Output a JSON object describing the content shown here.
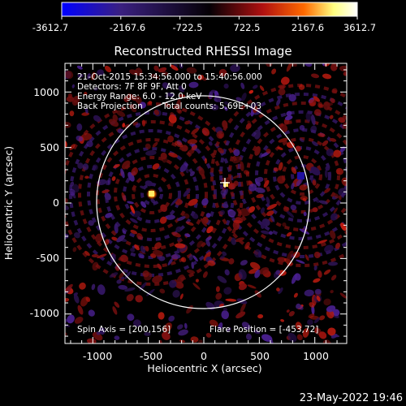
{
  "title": "Reconstructed RHESSI Image",
  "colorbar": {
    "ticks": [
      "-3612.7",
      "-2167.6",
      "-722.5",
      "722.5",
      "2167.6",
      "3612.7"
    ],
    "stops": [
      "#0000ff",
      "#3a2080",
      "#000000",
      "#b01010",
      "#ff6a00",
      "#ffff90",
      "#ffffff"
    ]
  },
  "info": {
    "line1": "21-Oct-2015 15:34:56.000 to 15:40:56.000",
    "line2": "Detectors: 7F 8F 9F, Att 0",
    "line3": "Energy Range: 6.0 - 12.0 keV",
    "line4a": "Back Projection",
    "line4b": "Total counts: 5.69E+03"
  },
  "footer": {
    "spin_axis": "Spin Axis = [200,156]",
    "flare_position": "Flare Position = [-453,72]"
  },
  "axes": {
    "xlabel": "Heliocentric X (arcsec)",
    "ylabel": "Heliocentric Y (arcsec)",
    "xticks": [
      "-1000",
      "-500",
      "0",
      "500",
      "1000"
    ],
    "yticks": [
      "1000",
      "500",
      "0",
      "-500",
      "-1000"
    ]
  },
  "timestamp": "23-May-2022 19:46",
  "colors": {
    "background": "#000000",
    "limb": "#ffffff",
    "hot": "#ffee66",
    "cold": "#2010a0"
  }
}
